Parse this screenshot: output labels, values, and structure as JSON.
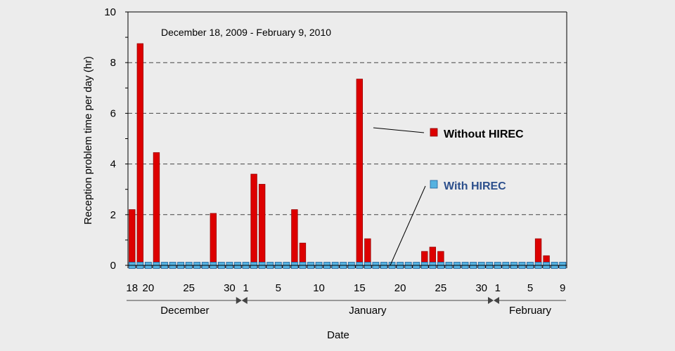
{
  "chart_data": {
    "type": "bar",
    "title": "December 18, 2009  -  February 9, 2010",
    "ylabel": "Reception problem time per day    (hr)",
    "xlabel": "Date",
    "ylim": [
      0,
      10
    ],
    "yticks": [
      0,
      2,
      4,
      6,
      8,
      10
    ],
    "x_tick_labels": [
      {
        "day_index": 0,
        "label": "18"
      },
      {
        "day_index": 2,
        "label": "20"
      },
      {
        "day_index": 7,
        "label": "25"
      },
      {
        "day_index": 12,
        "label": "30"
      },
      {
        "day_index": 14,
        "label": "1"
      },
      {
        "day_index": 18,
        "label": "5"
      },
      {
        "day_index": 23,
        "label": "10"
      },
      {
        "day_index": 28,
        "label": "15"
      },
      {
        "day_index": 33,
        "label": "20"
      },
      {
        "day_index": 38,
        "label": "25"
      },
      {
        "day_index": 43,
        "label": "30"
      },
      {
        "day_index": 45,
        "label": "1"
      },
      {
        "day_index": 49,
        "label": "5"
      },
      {
        "day_index": 53,
        "label": "9"
      }
    ],
    "months": [
      {
        "label": "December",
        "start_index": 0,
        "end_index": 13
      },
      {
        "label": "January",
        "start_index": 14,
        "end_index": 44
      },
      {
        "label": "February",
        "start_index": 45,
        "end_index": 53
      }
    ],
    "series": [
      {
        "name": "Without HIREC",
        "color": "#dd0000",
        "values": [
          2.2,
          8.75,
          0,
          4.45,
          0,
          0,
          0,
          0,
          0,
          0,
          2.05,
          0,
          0,
          0,
          0,
          3.6,
          3.2,
          0,
          0,
          0,
          2.2,
          0.88,
          0,
          0,
          0,
          0,
          0,
          0,
          7.35,
          1.05,
          0,
          0,
          0,
          0,
          0,
          0,
          0.55,
          0.72,
          0.55,
          0,
          0,
          0,
          0,
          0,
          0,
          0,
          0,
          0,
          0,
          0,
          1.05,
          0.38,
          0,
          0
        ]
      },
      {
        "name": "With HIREC",
        "color": "#56b2e0",
        "values": [
          0,
          0,
          0,
          0,
          0,
          0,
          0,
          0,
          0,
          0,
          0,
          0,
          0,
          0,
          0,
          0,
          0,
          0,
          0,
          0,
          0,
          0,
          0,
          0,
          0,
          0,
          0,
          0,
          0,
          0,
          0,
          0,
          0,
          0,
          0,
          0,
          0,
          0,
          0,
          0,
          0,
          0,
          0,
          0,
          0,
          0,
          0,
          0,
          0,
          0,
          0,
          0,
          0,
          0
        ]
      }
    ],
    "grid": "horizontal dashed",
    "legend_placement": "right, with callout lines"
  }
}
